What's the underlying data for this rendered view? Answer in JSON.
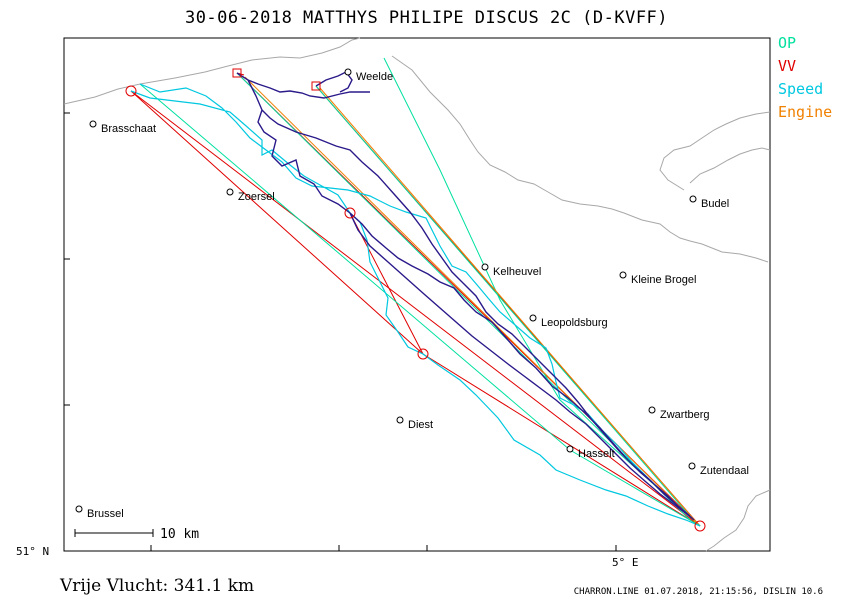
{
  "title": "30-06-2018    MATTHYS PHILIPE    DISCUS 2C (D-KVFF)",
  "legend": [
    {
      "label": "OP",
      "color": "#00e0a0"
    },
    {
      "label": "VV",
      "color": "#e00000"
    },
    {
      "label": "Speed",
      "color": "#00c8e0"
    },
    {
      "label": "Engine",
      "color": "#f08000"
    }
  ],
  "cities": [
    {
      "name": "Weelde"
    },
    {
      "name": "Brasschaat"
    },
    {
      "name": "Zoersel"
    },
    {
      "name": "Budel"
    },
    {
      "name": "Kelheuvel"
    },
    {
      "name": "Kleine Brogel"
    },
    {
      "name": "Leopoldsburg"
    },
    {
      "name": "Zwartberg"
    },
    {
      "name": "Diest"
    },
    {
      "name": "Hasselt"
    },
    {
      "name": "Zutendaal"
    },
    {
      "name": "Brussel"
    }
  ],
  "scale_label": "10 km",
  "axis_labels": {
    "lat": "51° N",
    "lon": "5° E"
  },
  "distance_text": "Vrije Vlucht:  341.1 km",
  "footer": "CHARRON.LINE 01.07.2018, 21:15:56, DISLIN 10.6",
  "colors": {
    "track": "#2a1a8a",
    "border": "#a8a8a8",
    "vv": "#e00000",
    "op": "#00e0a0",
    "speed": "#00c8e0",
    "engine": "#f08000"
  }
}
